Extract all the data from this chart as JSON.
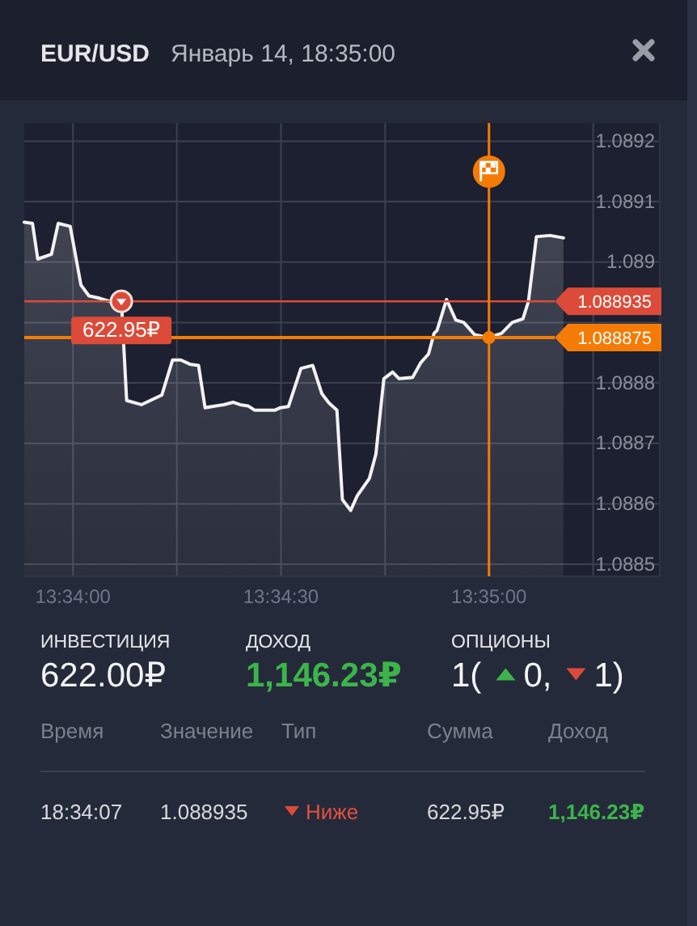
{
  "chart_data": {
    "type": "area",
    "title": "EUR/USD",
    "subtitle": "Январь 14, 18:35:00",
    "x": [
      13.56472,
      13.56505,
      13.56526,
      13.56581,
      13.56608,
      13.56656,
      13.56699,
      13.56731,
      13.56775,
      13.56829,
      13.56861,
      13.56882,
      13.56941,
      13.57023,
      13.57066,
      13.57099,
      13.57135,
      13.5717,
      13.57196,
      13.57239,
      13.57271,
      13.57308,
      13.57336,
      13.57368,
      13.57394,
      13.57476,
      13.57498,
      13.5753,
      13.5758,
      13.57627,
      13.57664,
      13.57692,
      13.57724,
      13.57746,
      13.57779,
      13.57805,
      13.57854,
      13.5788,
      13.57912,
      13.57947,
      13.57973,
      13.58027,
      13.58059,
      13.58091,
      13.58113,
      13.58125,
      13.58163,
      13.582,
      13.58232,
      13.58275,
      13.58307,
      13.58329,
      13.58383,
      13.58426,
      13.58469,
      13.58491,
      13.58523,
      13.58577,
      13.58631
    ],
    "values": [
      1.089066,
      1.089064,
      1.089005,
      1.089013,
      1.089064,
      1.089059,
      1.088962,
      1.088944,
      1.08894,
      1.088933,
      1.088935,
      1.088771,
      1.088764,
      1.08878,
      1.088838,
      1.088838,
      1.088831,
      1.088829,
      1.088759,
      1.088762,
      1.088764,
      1.088768,
      1.088764,
      1.088762,
      1.088755,
      1.088755,
      1.088759,
      1.088761,
      1.088824,
      1.088829,
      1.088782,
      1.088767,
      1.088755,
      1.088607,
      1.088589,
      1.088613,
      1.088642,
      1.088682,
      1.088807,
      1.088818,
      1.088807,
      1.088809,
      1.088833,
      1.088848,
      1.088882,
      1.088887,
      1.088938,
      1.088904,
      1.0889,
      1.08888,
      1.088877,
      1.088875,
      1.088882,
      1.0889,
      1.088906,
      1.088935,
      1.089042,
      1.089044,
      1.08904
    ],
    "color": "#f2f2f2",
    "xlim": [
      13.56472,
      13.59017
    ],
    "ylim": [
      1.08848,
      1.08923
    ],
    "xticks": [
      {
        "value": 13.56667,
        "label": "13:34:00"
      },
      {
        "value": 13.57083,
        "label": null
      },
      {
        "value": 13.575,
        "label": "13:34:30"
      },
      {
        "value": 13.57917,
        "label": null
      },
      {
        "value": 13.58333,
        "label": "13:35:00"
      },
      {
        "value": 13.5875,
        "label": null
      }
    ],
    "yticks": [
      1.0885,
      1.0886,
      1.0887,
      1.0888,
      {
        "value": 1.0889,
        "label": null
      },
      1.089,
      1.0891,
      1.0892
    ],
    "grid": true,
    "ref_lines": [
      {
        "axis": "y",
        "value": 1.088935,
        "label": "1.088935",
        "color": "#dc4b39"
      },
      {
        "axis": "y",
        "value": 1.088875,
        "label": "1.088875",
        "color": "#f47b05"
      },
      {
        "axis": "x",
        "value": 13.58333,
        "color": "#f47b05"
      }
    ],
    "annotations": [
      {
        "text": "622.95₽",
        "x": 13.56861,
        "y": 1.088935
      },
      "ИНВЕСТИЦИЯ",
      "622.00₽",
      "ДОХОД",
      "1,146.23₽",
      "ОПЦИОНЫ",
      "1(",
      "0,",
      "1)",
      "Время",
      "Значение",
      "Тип",
      "Сумма",
      "Доход",
      "18:34:07",
      "1.088935",
      "Ниже",
      "622.95₽",
      "1,146.23₽"
    ]
  }
}
